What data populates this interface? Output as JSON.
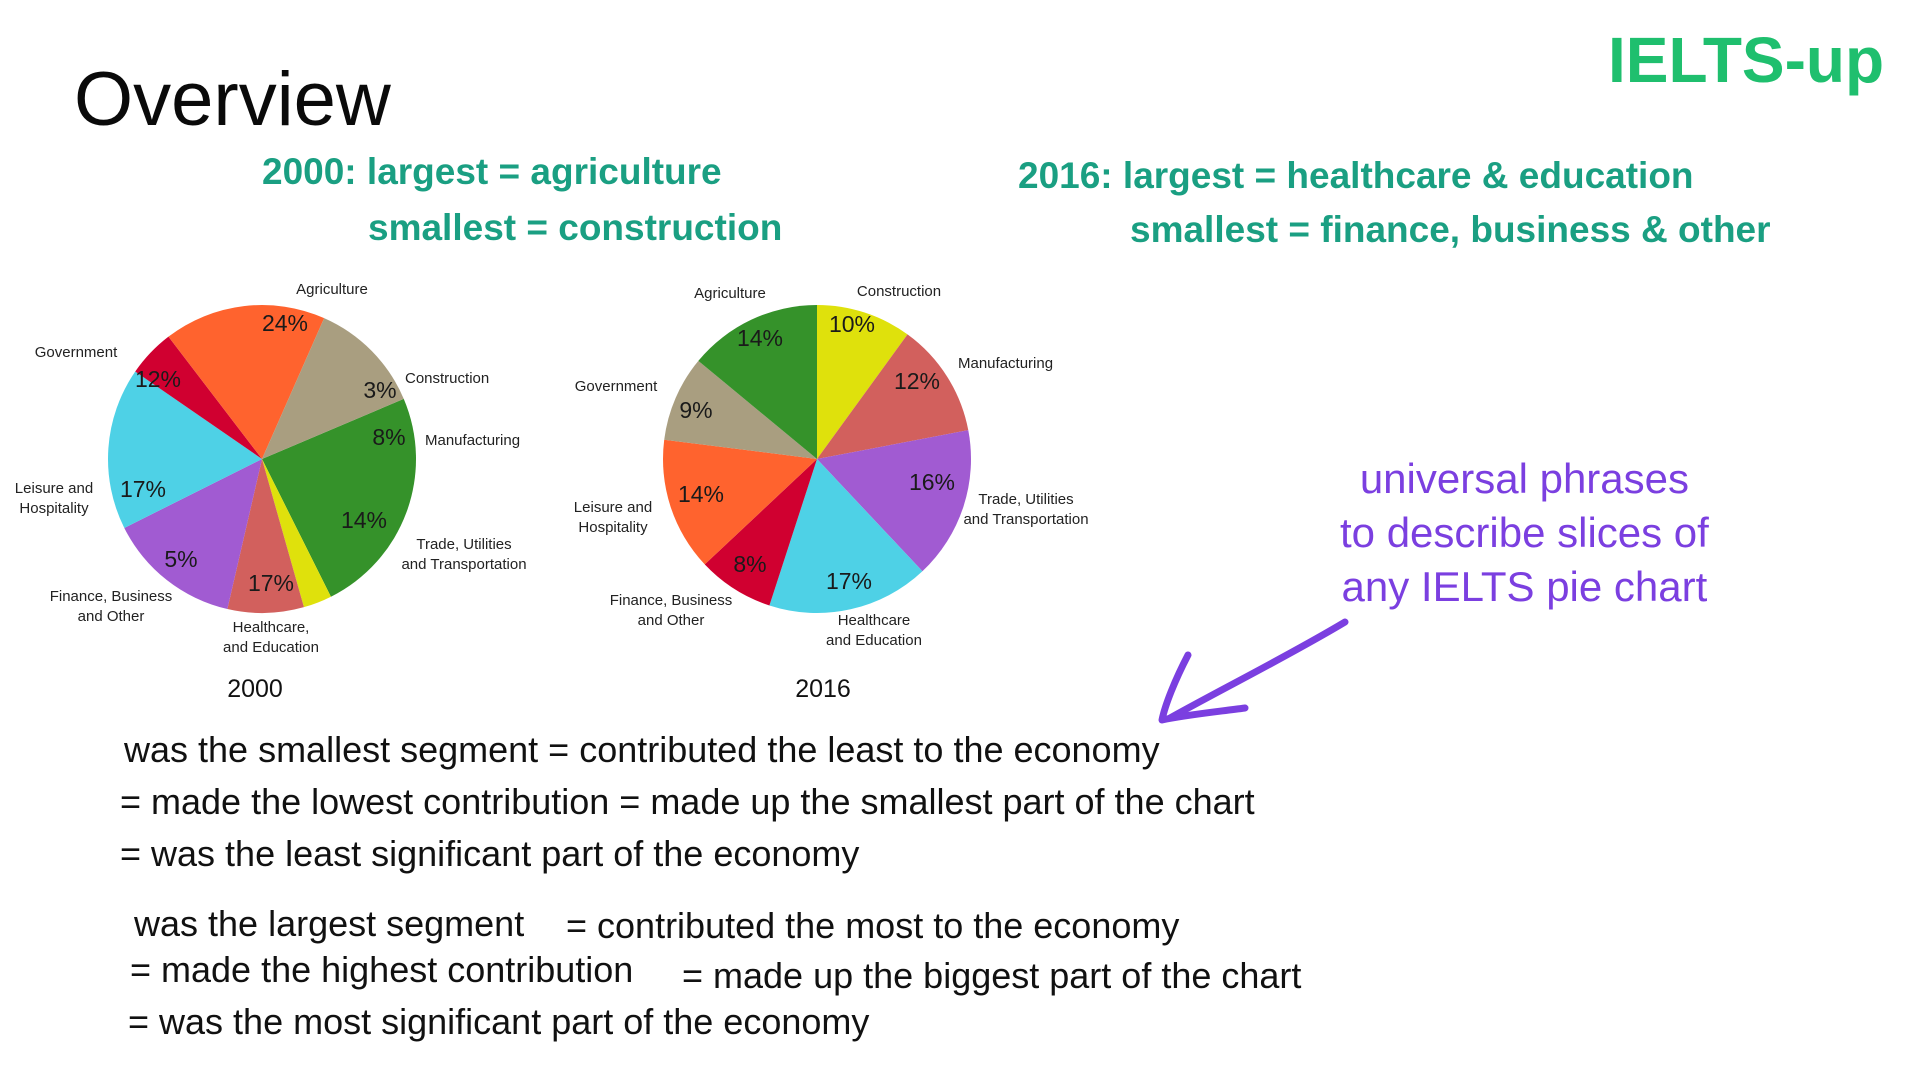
{
  "slide": {
    "title": "Overview",
    "brand": "IELTS-up",
    "summary_2000_line1": "2000: largest = agriculture",
    "summary_2000_line2": "smallest = construction",
    "summary_2016_line1": "2016: largest = healthcare & education",
    "summary_2016_line2": "smallest = finance, business & other",
    "callout_lines": [
      "universal phrases",
      "to describe slices of",
      "any IELTS pie chart"
    ],
    "smallest_phrases": [
      "was the smallest segment = contributed the least to the economy",
      "= made the lowest contribution = made up the smallest part of the chart",
      "= was the least significant part of the economy"
    ],
    "largest_phrases": [
      "was the largest segment",
      "= contributed the most to the economy",
      "= made the highest contribution",
      "= made up the biggest part of the chart",
      "= was the most significant part of the economy"
    ]
  },
  "colors": {
    "brand": "#1fbf6e",
    "summary": "#1a9f82",
    "callout": "#7b3fe0",
    "arrow": "#7b3fe0"
  },
  "icons": {
    "callout_arrow": "arrow-down-left-icon"
  },
  "chart_data": [
    {
      "type": "pie",
      "title": "2000",
      "slices": [
        {
          "label": "Agriculture",
          "value": 24,
          "display": "24%",
          "color": "#35922a"
        },
        {
          "label": "Construction",
          "value": 3,
          "display": "3%",
          "color": "#dfe10c"
        },
        {
          "label": "Manufacturing",
          "value": 8,
          "display": "8%",
          "color": "#d2605d"
        },
        {
          "label": "Trade, Utilities\nand Transportation",
          "value": 14,
          "display": "14%",
          "color": "#a15bd2"
        },
        {
          "label": "Healthcare,\nand Education",
          "value": 17,
          "display": "17%",
          "color": "#4ed1e6"
        },
        {
          "label": "Finance, Business\nand Other",
          "value": 5,
          "display": "5%",
          "color": "#d00030"
        },
        {
          "label": "Leisure and\nHospitality",
          "value": 17,
          "display": "17%",
          "color": "#ff632e"
        },
        {
          "label": "Government",
          "value": 12,
          "display": "12%",
          "color": "#a99e80"
        }
      ]
    },
    {
      "type": "pie",
      "title": "2016",
      "slices": [
        {
          "label": "Construction",
          "value": 10,
          "display": "10%",
          "color": "#dfe10c"
        },
        {
          "label": "Manufacturing",
          "value": 12,
          "display": "12%",
          "color": "#d2605d"
        },
        {
          "label": "Trade, Utilities\nand Transportation",
          "value": 16,
          "display": "16%",
          "color": "#a15bd2"
        },
        {
          "label": "Healthcare\nand Education",
          "value": 17,
          "display": "17%",
          "color": "#4ed1e6"
        },
        {
          "label": "Finance, Business\nand Other",
          "value": 8,
          "display": "8%",
          "color": "#d00030"
        },
        {
          "label": "Leisure and\nHospitality",
          "value": 14,
          "display": "14%",
          "color": "#ff632e"
        },
        {
          "label": "Government",
          "value": 9,
          "display": "9%",
          "color": "#a99e80"
        },
        {
          "label": "Agriculture",
          "value": 14,
          "display": "14%",
          "color": "#35922a"
        }
      ]
    }
  ]
}
